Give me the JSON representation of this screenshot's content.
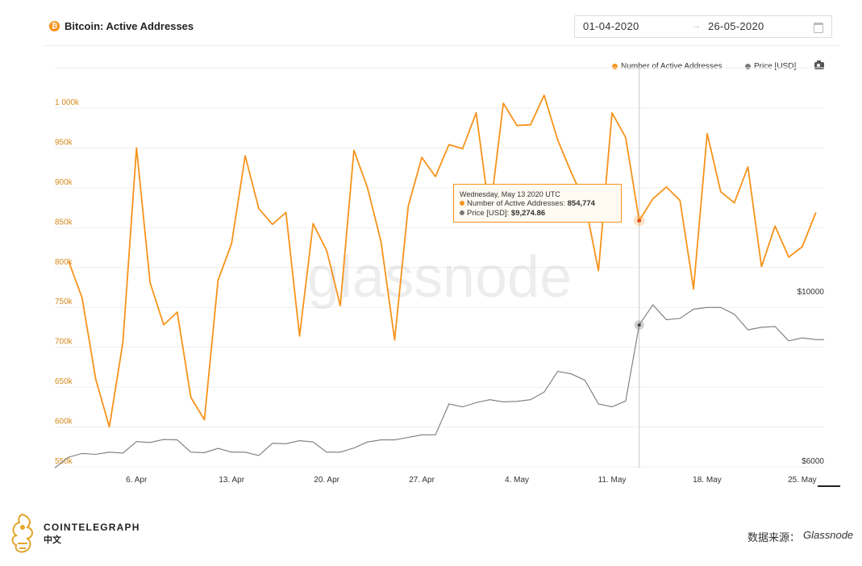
{
  "header": {
    "coin_badge": "₿",
    "title": "Bitcoin: Active Addresses",
    "date_from": "01-04-2020",
    "date_arrow": "→",
    "date_to": "26-05-2020"
  },
  "legend": {
    "series1": "Number of Active Addresses",
    "series2": "Price [USD]"
  },
  "watermark": "glassnode",
  "tooltip": {
    "date": "Wednesday, May 13 2020 UTC",
    "line1_label": "Number of Active Addresses:",
    "line1_value": "854,774",
    "line2_label": "Price [USD]:",
    "line2_value": "$9,274.86"
  },
  "colors": {
    "active_addresses": "#f7931a",
    "price": "#777777",
    "tick_orange": "#d58a1a"
  },
  "chart_data": {
    "type": "line",
    "x_type": "date",
    "x": [
      "2020-04-01",
      "2020-04-02",
      "2020-04-03",
      "2020-04-04",
      "2020-04-05",
      "2020-04-06",
      "2020-04-07",
      "2020-04-08",
      "2020-04-09",
      "2020-04-10",
      "2020-04-11",
      "2020-04-12",
      "2020-04-13",
      "2020-04-14",
      "2020-04-15",
      "2020-04-16",
      "2020-04-17",
      "2020-04-18",
      "2020-04-19",
      "2020-04-20",
      "2020-04-21",
      "2020-04-22",
      "2020-04-23",
      "2020-04-24",
      "2020-04-25",
      "2020-04-26",
      "2020-04-27",
      "2020-04-28",
      "2020-04-29",
      "2020-04-30",
      "2020-05-01",
      "2020-05-02",
      "2020-05-03",
      "2020-05-04",
      "2020-05-05",
      "2020-05-06",
      "2020-05-07",
      "2020-05-08",
      "2020-05-09",
      "2020-05-10",
      "2020-05-11",
      "2020-05-12",
      "2020-05-13",
      "2020-05-14",
      "2020-05-15",
      "2020-05-16",
      "2020-05-17",
      "2020-05-18",
      "2020-05-19",
      "2020-05-20",
      "2020-05-21",
      "2020-05-22",
      "2020-05-23",
      "2020-05-24",
      "2020-05-25",
      "2020-05-26"
    ],
    "x_ticks": [
      "6. Apr",
      "13. Apr",
      "20. Apr",
      "27. Apr",
      "4. May",
      "11. May",
      "18. May",
      "25. May"
    ],
    "series": [
      {
        "name": "Number of Active Addresses",
        "axis": "left",
        "values": [
          804000,
          758000,
          656000,
          596000,
          702000,
          946000,
          777000,
          724000,
          740000,
          633000,
          605000,
          780000,
          826000,
          936000,
          870000,
          850000,
          865000,
          710000,
          851000,
          817000,
          748000,
          943000,
          896000,
          828000,
          705000,
          873000,
          934000,
          910000,
          950000,
          945000,
          990000,
          862000,
          1002000,
          974000,
          975000,
          1012000,
          956000,
          915000,
          878000,
          792000,
          990000,
          959000,
          854774,
          882000,
          897000,
          880000,
          769000,
          964000,
          891000,
          877000,
          922000,
          797000,
          848000,
          809000,
          822000,
          865000
        ]
      },
      {
        "name": "Price [USD]",
        "axis": "right",
        "values": [
          6150,
          6240,
          6220,
          6270,
          6250,
          6520,
          6500,
          6570,
          6560,
          6270,
          6260,
          6360,
          6270,
          6270,
          6190,
          6480,
          6470,
          6540,
          6510,
          6270,
          6270,
          6370,
          6510,
          6560,
          6560,
          6620,
          6680,
          6680,
          7410,
          7340,
          7440,
          7510,
          7460,
          7470,
          7510,
          7690,
          8180,
          8120,
          7970,
          7410,
          7340,
          7480,
          9274.86,
          9750,
          9400,
          9430,
          9650,
          9690,
          9690,
          9530,
          9160,
          9220,
          9240,
          8900,
          8970,
          8930
        ]
      }
    ],
    "yaxis_left": {
      "ticks": [
        "550k",
        "600k",
        "650k",
        "700k",
        "750k",
        "800k",
        "850k",
        "900k",
        "950k",
        "1 000k"
      ],
      "range": [
        550000,
        1000000
      ]
    },
    "yaxis_right": {
      "ticks": [
        "$6000",
        "$10000"
      ],
      "range": [
        6000,
        10000
      ]
    },
    "highlight": {
      "x": "2020-05-13",
      "index": 42
    },
    "grid": true,
    "legend_position": "top-right"
  },
  "footer": {
    "brand_name": "COINTELEGRAPH",
    "brand_sub": "中文",
    "source_label": "数据来源：",
    "source_value": "Glassnode"
  }
}
